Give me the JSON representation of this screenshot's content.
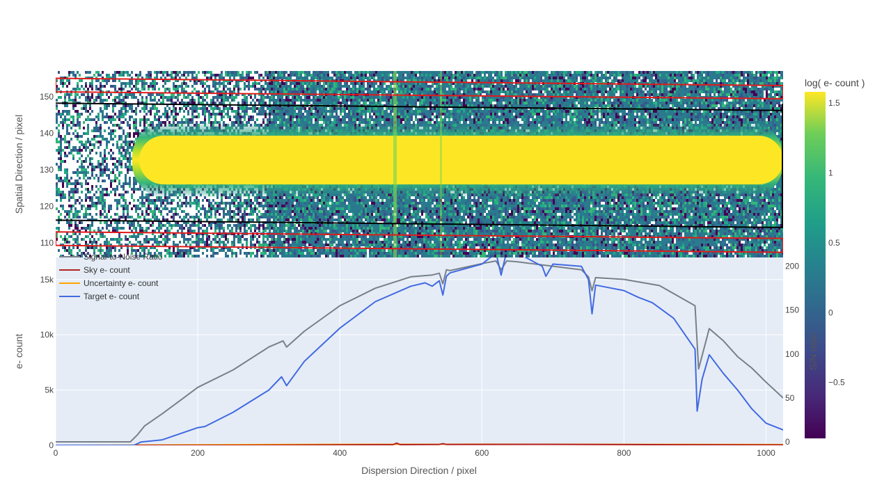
{
  "chart_data": [
    {
      "type": "heatmap",
      "title": "",
      "xlabel": "",
      "ylabel": "Spatial Direction / pixel",
      "xlim": [
        0,
        1024
      ],
      "ylim": [
        106,
        157
      ],
      "y_ticks": [
        "110",
        "120",
        "130",
        "140",
        "150"
      ],
      "trace_center": 131,
      "trace_halfwidth": 7,
      "colorbar": {
        "title": "log( e- count )",
        "range": [
          -0.9,
          1.58
        ],
        "ticks": [
          "−0.5",
          "0",
          "0.5",
          "1",
          "1.5"
        ],
        "colorscale": "viridis"
      },
      "aperture_lines": [
        {
          "name": "aperture-upper",
          "color": "#000000",
          "x": [
            0,
            1024
          ],
          "y_start": 148.2,
          "y_end": 146.2
        },
        {
          "name": "aperture-lower",
          "color": "#000000",
          "x": [
            0,
            1024
          ],
          "y_start": 116.2,
          "y_end": 114.2
        }
      ],
      "sky_regions": [
        {
          "name": "sky-upper",
          "color": "#e01b1b",
          "y_top_start": 155,
          "y_bot_start": 151.3,
          "y_top_end": 153,
          "y_bot_end": 149.4
        },
        {
          "name": "sky-lower",
          "color": "#e01b1b",
          "y_top_start": 113,
          "y_bot_start": 109.3,
          "y_top_end": 111.2,
          "y_bot_end": 107.4
        }
      ]
    },
    {
      "type": "line",
      "title": "",
      "xlabel": "Dispersion Direction / pixel",
      "ylabel": "e- count",
      "y2label": "S/N ratio",
      "xlim": [
        0,
        1024
      ],
      "ylim": [
        0,
        17000
      ],
      "y2lim": [
        -4,
        210
      ],
      "x_ticks": [
        "0",
        "200",
        "400",
        "600",
        "800",
        "1000"
      ],
      "y_ticks": [
        "0",
        "5k",
        "10k",
        "15k"
      ],
      "y2_ticks": [
        "0",
        "50",
        "100",
        "150",
        "200"
      ],
      "legend": [
        "Signal-to-Noise Ratio",
        "Sky e- count",
        "Uncertainty e- count",
        "Target e- count"
      ],
      "series": [
        {
          "name": "Target e- count",
          "color": "#4169e1",
          "axis": "y",
          "x": [
            0,
            110,
            120,
            150,
            200,
            210,
            250,
            300,
            318,
            325,
            350,
            400,
            450,
            500,
            520,
            530,
            540,
            545,
            550,
            555,
            600,
            620,
            627,
            635,
            650,
            685,
            690,
            700,
            740,
            750,
            755,
            760,
            800,
            820,
            840,
            870,
            900,
            903,
            910,
            920,
            940,
            960,
            980,
            1000,
            1024
          ],
          "values": [
            0,
            0,
            300,
            500,
            1600,
            1700,
            3000,
            5000,
            6200,
            5400,
            7600,
            10600,
            13000,
            14400,
            14700,
            14400,
            14900,
            13600,
            15300,
            15600,
            16400,
            17400,
            15400,
            17600,
            17400,
            16200,
            15300,
            16400,
            16200,
            15000,
            11900,
            14500,
            14000,
            13400,
            12900,
            11500,
            8700,
            3100,
            6000,
            8200,
            6500,
            5000,
            3300,
            2000,
            1400
          ]
        },
        {
          "name": "Signal-to-Noise Ratio",
          "color": "#778088",
          "axis": "y2",
          "x": [
            0,
            105,
            115,
            125,
            150,
            200,
            250,
            300,
            320,
            325,
            350,
            400,
            450,
            500,
            530,
            540,
            545,
            550,
            555,
            600,
            620,
            627,
            635,
            650,
            700,
            740,
            750,
            755,
            760,
            800,
            850,
            900,
            905,
            920,
            940,
            960,
            980,
            1000,
            1024
          ],
          "values": [
            0,
            0,
            8,
            18,
            32,
            62,
            82,
            108,
            115,
            108,
            126,
            155,
            175,
            188,
            190,
            192,
            180,
            196,
            195,
            203,
            206,
            196,
            206,
            205,
            200,
            196,
            188,
            172,
            187,
            185,
            178,
            155,
            83,
            129,
            115,
            97,
            84,
            68,
            50
          ]
        },
        {
          "name": "Sky e- count",
          "color": "#b22222",
          "axis": "y",
          "x": [
            0,
            260,
            400,
            475,
            480,
            485,
            540,
            545,
            550,
            700,
            800,
            900,
            1024
          ],
          "values": [
            0,
            0,
            40,
            60,
            200,
            60,
            80,
            150,
            80,
            90,
            70,
            50,
            30
          ]
        },
        {
          "name": "Uncertainty e- count",
          "color": "#ffa500",
          "axis": "y",
          "x": [
            0,
            260,
            400,
            600,
            800,
            1024
          ],
          "values": [
            0,
            60,
            90,
            100,
            90,
            70
          ]
        }
      ]
    }
  ]
}
